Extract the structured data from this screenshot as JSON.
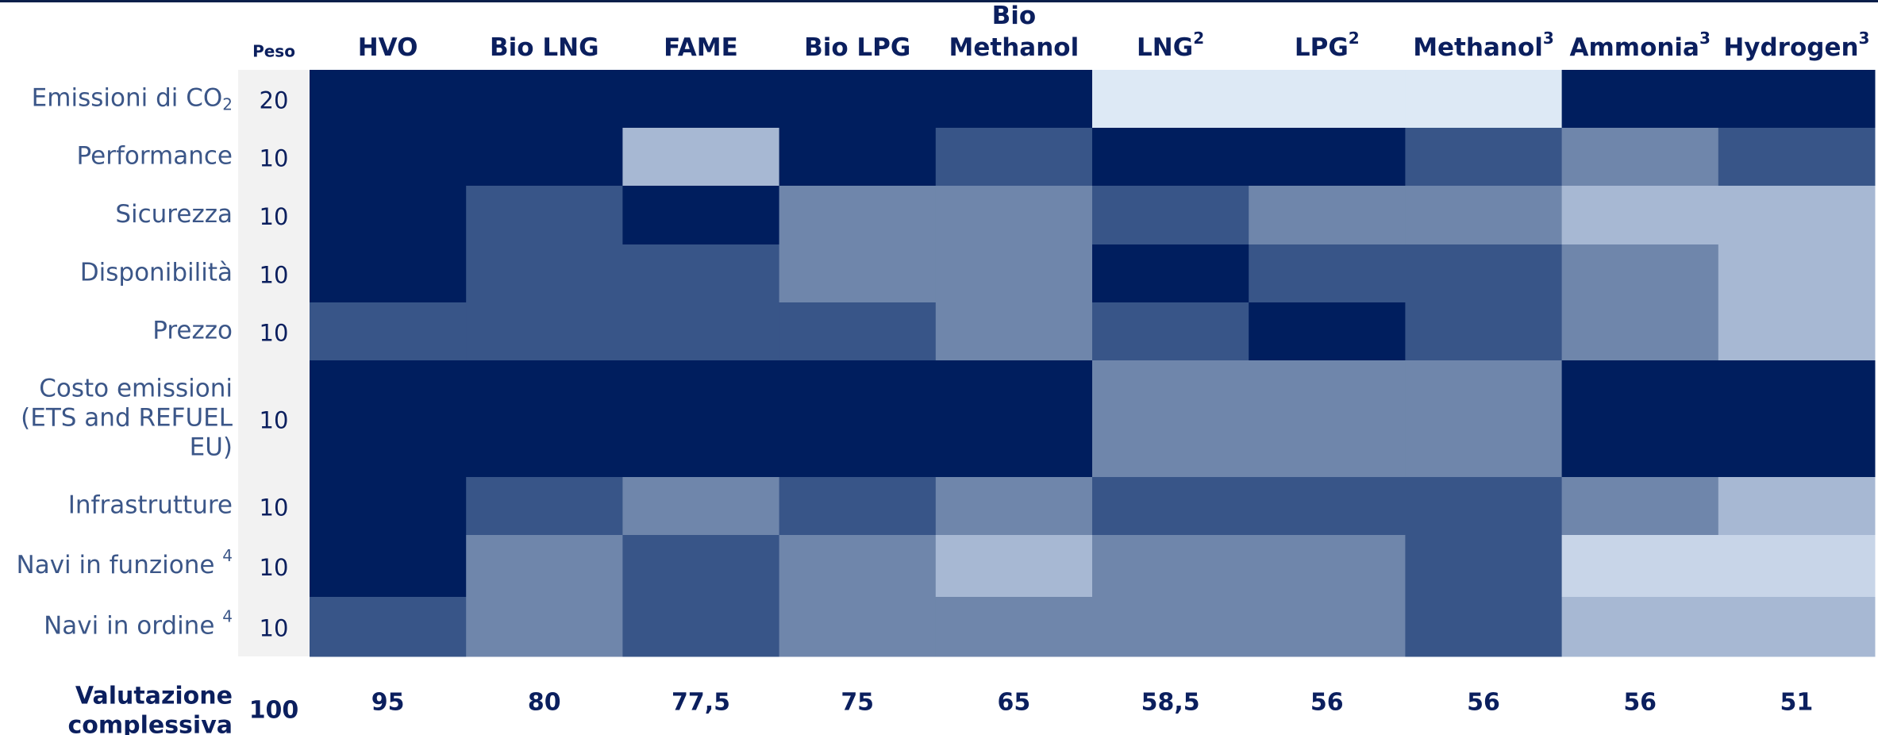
{
  "weight_header": "Peso",
  "columns": [
    {
      "lines": [
        "HVO"
      ]
    },
    {
      "lines": [
        "Bio LNG"
      ]
    },
    {
      "lines": [
        "FAME"
      ]
    },
    {
      "lines": [
        "Bio LPG"
      ]
    },
    {
      "lines": [
        "Bio",
        "Methanol"
      ]
    },
    {
      "lines": [
        "LNG"
      ],
      "sup": "2"
    },
    {
      "lines": [
        "LPG"
      ],
      "sup": "2"
    },
    {
      "lines": [
        "Methanol"
      ],
      "sup": "3"
    },
    {
      "lines": [
        "Ammonia"
      ],
      "sup": "3"
    },
    {
      "lines": [
        "Hydrogen"
      ],
      "sup": "3"
    }
  ],
  "rows": [
    {
      "lines": [
        "Emissioni di CO"
      ],
      "sub": "2",
      "weight": 20,
      "colors": [
        "#001e5e",
        "#001e5e",
        "#001e5e",
        "#001e5e",
        "#001e5e",
        "#dde9f5",
        "#dde9f5",
        "#dde9f5",
        "#001e5e",
        "#001e5e"
      ]
    },
    {
      "lines": [
        "Performance"
      ],
      "weight": 10,
      "colors": [
        "#001e5e",
        "#001e5e",
        "#a7b8d3",
        "#001e5e",
        "#385588",
        "#001e5e",
        "#001e5e",
        "#385588",
        "#6f86ab",
        "#385588"
      ]
    },
    {
      "lines": [
        "Sicurezza"
      ],
      "weight": 10,
      "colors": [
        "#001e5e",
        "#385588",
        "#001e5e",
        "#6f86ab",
        "#6f86ab",
        "#385588",
        "#6f86ab",
        "#6f86ab",
        "#a7b8d3",
        "#a7b8d3"
      ]
    },
    {
      "lines": [
        "Disponibilità"
      ],
      "weight": 10,
      "colors": [
        "#001e5e",
        "#385588",
        "#385588",
        "#6f86ab",
        "#6f86ab",
        "#001e5e",
        "#385588",
        "#385588",
        "#6f86ab",
        "#a7b8d3"
      ]
    },
    {
      "lines": [
        "Prezzo"
      ],
      "weight": 10,
      "colors": [
        "#385588",
        "#385588",
        "#385588",
        "#385588",
        "#6f86ab",
        "#385588",
        "#001e5e",
        "#385588",
        "#6f86ab",
        "#a7b8d3"
      ]
    },
    {
      "lines": [
        "Costo emissioni",
        "(ETS and REFUEL",
        "EU)"
      ],
      "weight": 10,
      "colors": [
        "#001e5e",
        "#001e5e",
        "#001e5e",
        "#001e5e",
        "#001e5e",
        "#6f86ab",
        "#6f86ab",
        "#6f86ab",
        "#001e5e",
        "#001e5e"
      ]
    },
    {
      "lines": [
        "Infrastrutture"
      ],
      "weight": 10,
      "colors": [
        "#001e5e",
        "#385588",
        "#6f86ab",
        "#385588",
        "#6f86ab",
        "#385588",
        "#385588",
        "#385588",
        "#6f86ab",
        "#a7b8d3"
      ]
    },
    {
      "lines": [
        "Navi in funzione "
      ],
      "sup": "4",
      "weight": 10,
      "colors": [
        "#001e5e",
        "#6f86ab",
        "#385588",
        "#6f86ab",
        "#a7b8d3",
        "#6f86ab",
        "#6f86ab",
        "#385588",
        "#c8d5e8",
        "#c8d5e8"
      ]
    },
    {
      "lines": [
        "Navi in ordine "
      ],
      "sup": "4",
      "weight": 10,
      "colors": [
        "#385588",
        "#6f86ab",
        "#385588",
        "#6f86ab",
        "#6f86ab",
        "#6f86ab",
        "#6f86ab",
        "#385588",
        "#a7b8d3",
        "#a7b8d3"
      ]
    }
  ],
  "total": {
    "lines": [
      "Valutazione",
      "complessiva"
    ],
    "weight": 100,
    "scores": [
      "95",
      "80",
      "77,5",
      "75",
      "65",
      "58,5",
      "56",
      "56",
      "56",
      "51"
    ]
  }
}
